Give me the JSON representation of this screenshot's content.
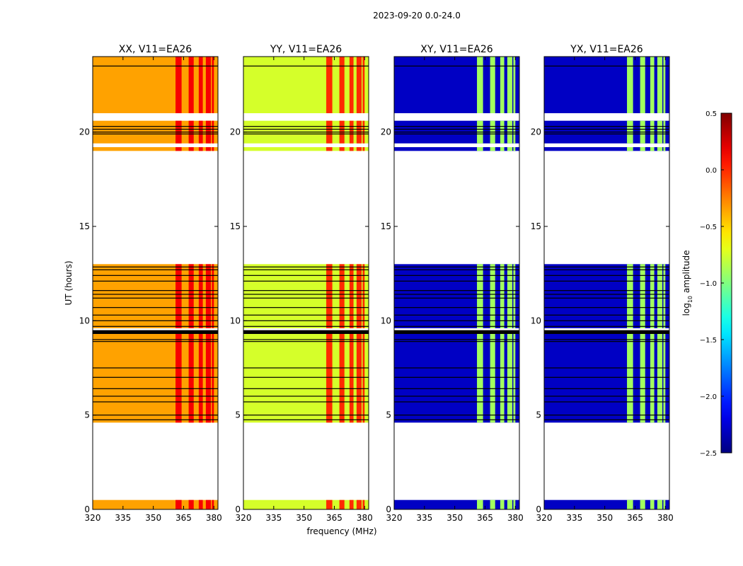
{
  "chart_data": {
    "type": "heatmap",
    "title": "2023-09-20 0.0-24.0",
    "xlabel": "frequency (MHz)",
    "ylabel": "UT (hours)",
    "xlim": [
      320,
      382
    ],
    "ylim": [
      0,
      24
    ],
    "x_ticks": [
      320,
      335,
      350,
      365,
      380
    ],
    "y_ticks": [
      0,
      5,
      10,
      15,
      20
    ],
    "panels": [
      {
        "title": "XX, V11=EA26",
        "base_value": -0.35,
        "strong_value": 0.15
      },
      {
        "title": "YY, V11=EA26",
        "base_value": -0.75,
        "strong_value": 0.0
      },
      {
        "title": "XY, V11=EA26",
        "base_value": -2.3,
        "strong_value": -0.9
      },
      {
        "title": "YX, V11=EA26",
        "base_value": -2.3,
        "strong_value": -0.9
      }
    ],
    "rfi_freq_ranges_mhz": [
      [
        361,
        364
      ],
      [
        367.5,
        370
      ],
      [
        372.5,
        374.5
      ],
      [
        376,
        378.5
      ],
      [
        379,
        380
      ]
    ],
    "data_time_ranges_hours": [
      [
        0,
        0.5
      ],
      [
        4.6,
        9.3
      ],
      [
        9.6,
        13.0
      ],
      [
        19.0,
        19.2
      ],
      [
        19.4,
        20.6
      ],
      [
        21.0,
        24.0
      ]
    ],
    "flagged_lines_hours": [
      4.75,
      5.0,
      5.7,
      6.0,
      6.4,
      7.0,
      7.5,
      8.9,
      9.0,
      9.7,
      10.0,
      10.3,
      10.7,
      11.2,
      11.4,
      11.6,
      12.1,
      12.4,
      12.7,
      12.85,
      19.9,
      20.0,
      20.15,
      20.3,
      23.5
    ],
    "colorbar": {
      "label": "log",
      "label_sub": "10",
      "label_suffix": " amplitude",
      "range": [
        -2.5,
        0.5
      ],
      "ticks": [
        "0.5",
        "0.0",
        "−0.5",
        "−1.0",
        "−1.5",
        "−2.0",
        "−2.5"
      ],
      "tick_values": [
        0.5,
        0.0,
        -0.5,
        -1.0,
        -1.5,
        -2.0,
        -2.5
      ],
      "colormap": "jet"
    }
  }
}
